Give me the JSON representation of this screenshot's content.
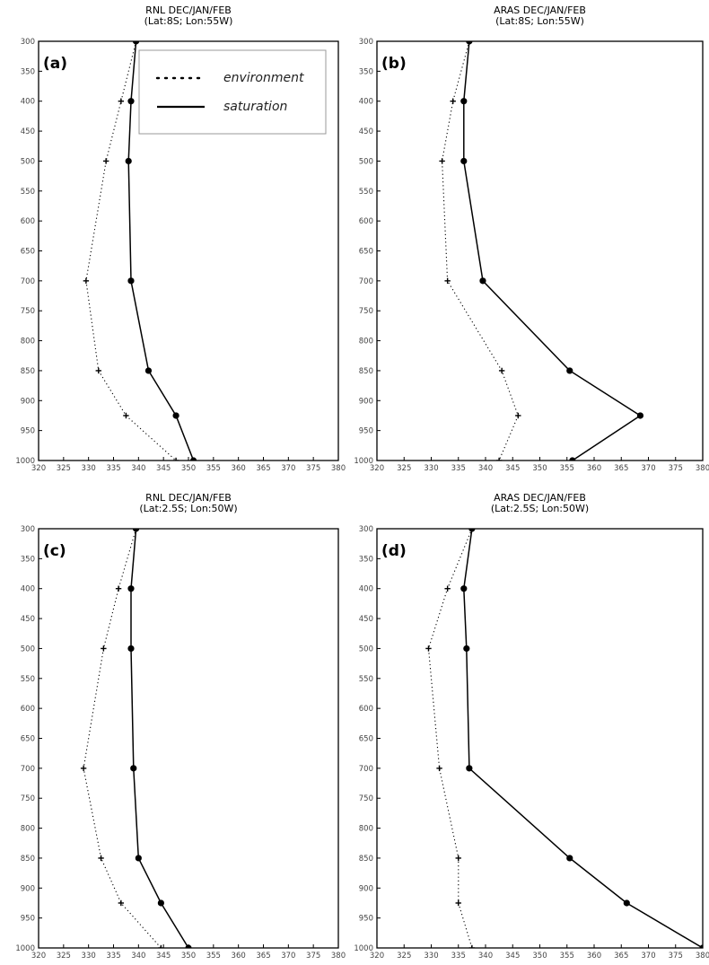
{
  "chart_data": [
    {
      "type": "line",
      "panel_label": "(a)",
      "title": "RNL DEC/JAN/FEB",
      "subtitle": "(Lat:8S; Lon:55W)",
      "xlim": [
        320,
        380
      ],
      "ylim": [
        300,
        1000
      ],
      "y_inverted": true,
      "xticks": [
        320,
        325,
        330,
        335,
        340,
        345,
        350,
        355,
        360,
        365,
        370,
        375,
        380
      ],
      "yticks": [
        300,
        350,
        400,
        450,
        500,
        550,
        600,
        650,
        700,
        750,
        800,
        850,
        900,
        950,
        1000
      ],
      "legend": {
        "location": "top-right",
        "entries": [
          "environment",
          "saturation"
        ]
      },
      "series": [
        {
          "name": "environment",
          "style": "dotted",
          "marker": "plus",
          "points": [
            {
              "p": 300,
              "t": 339.5
            },
            {
              "p": 400,
              "t": 336.5
            },
            {
              "p": 500,
              "t": 333.5
            },
            {
              "p": 700,
              "t": 329.5
            },
            {
              "p": 850,
              "t": 332.0
            },
            {
              "p": 925,
              "t": 337.5
            },
            {
              "p": 1000,
              "t": 347.5
            }
          ]
        },
        {
          "name": "saturation",
          "style": "solid",
          "marker": "dot",
          "points": [
            {
              "p": 300,
              "t": 339.5
            },
            {
              "p": 400,
              "t": 338.5
            },
            {
              "p": 500,
              "t": 338.0
            },
            {
              "p": 700,
              "t": 338.5
            },
            {
              "p": 850,
              "t": 342.0
            },
            {
              "p": 925,
              "t": 347.5
            },
            {
              "p": 1000,
              "t": 351.0
            }
          ]
        }
      ]
    },
    {
      "type": "line",
      "panel_label": "(b)",
      "title": "ARAS DEC/JAN/FEB",
      "subtitle": "(Lat:8S; Lon:55W)",
      "xlim": [
        320,
        380
      ],
      "ylim": [
        300,
        1000
      ],
      "y_inverted": true,
      "xticks": [
        320,
        325,
        330,
        335,
        340,
        345,
        350,
        355,
        360,
        365,
        370,
        375,
        380
      ],
      "yticks": [
        300,
        350,
        400,
        450,
        500,
        550,
        600,
        650,
        700,
        750,
        800,
        850,
        900,
        950,
        1000
      ],
      "series": [
        {
          "name": "environment",
          "style": "dotted",
          "marker": "plus",
          "points": [
            {
              "p": 300,
              "t": 337.0
            },
            {
              "p": 400,
              "t": 334.0
            },
            {
              "p": 500,
              "t": 332.0
            },
            {
              "p": 700,
              "t": 333.0
            },
            {
              "p": 850,
              "t": 343.0
            },
            {
              "p": 925,
              "t": 346.0
            },
            {
              "p": 1000,
              "t": 342.5
            }
          ]
        },
        {
          "name": "saturation",
          "style": "solid",
          "marker": "dot",
          "points": [
            {
              "p": 300,
              "t": 337.0
            },
            {
              "p": 400,
              "t": 336.0
            },
            {
              "p": 500,
              "t": 336.0
            },
            {
              "p": 700,
              "t": 339.5
            },
            {
              "p": 850,
              "t": 355.5
            },
            {
              "p": 925,
              "t": 368.5
            },
            {
              "p": 1000,
              "t": 356.0
            }
          ]
        }
      ]
    },
    {
      "type": "line",
      "panel_label": "(c)",
      "title": "RNL DEC/JAN/FEB",
      "subtitle": "(Lat:2.5S; Lon:50W)",
      "xlim": [
        320,
        380
      ],
      "ylim": [
        300,
        1000
      ],
      "y_inverted": true,
      "xticks": [
        320,
        325,
        330,
        335,
        340,
        345,
        350,
        355,
        360,
        365,
        370,
        375,
        380
      ],
      "yticks": [
        300,
        350,
        400,
        450,
        500,
        550,
        600,
        650,
        700,
        750,
        800,
        850,
        900,
        950,
        1000
      ],
      "series": [
        {
          "name": "environment",
          "style": "dotted",
          "marker": "plus",
          "points": [
            {
              "p": 300,
              "t": 339.5
            },
            {
              "p": 400,
              "t": 336.0
            },
            {
              "p": 500,
              "t": 333.0
            },
            {
              "p": 700,
              "t": 329.0
            },
            {
              "p": 850,
              "t": 332.5
            },
            {
              "p": 925,
              "t": 336.5
            },
            {
              "p": 1000,
              "t": 344.5
            }
          ]
        },
        {
          "name": "saturation",
          "style": "solid",
          "marker": "dot",
          "points": [
            {
              "p": 300,
              "t": 339.5
            },
            {
              "p": 400,
              "t": 338.5
            },
            {
              "p": 500,
              "t": 338.5
            },
            {
              "p": 700,
              "t": 339.0
            },
            {
              "p": 850,
              "t": 340.0
            },
            {
              "p": 925,
              "t": 344.5
            },
            {
              "p": 1000,
              "t": 350.0
            }
          ]
        }
      ]
    },
    {
      "type": "line",
      "panel_label": "(d)",
      "title": "ARAS DEC/JAN/FEB",
      "subtitle": "(Lat:2.5S; Lon:50W)",
      "xlim": [
        320,
        380
      ],
      "ylim": [
        300,
        1000
      ],
      "y_inverted": true,
      "xticks": [
        320,
        325,
        330,
        335,
        340,
        345,
        350,
        355,
        360,
        365,
        370,
        375,
        380
      ],
      "yticks": [
        300,
        350,
        400,
        450,
        500,
        550,
        600,
        650,
        700,
        750,
        800,
        850,
        900,
        950,
        1000
      ],
      "series": [
        {
          "name": "environment",
          "style": "dotted",
          "marker": "plus",
          "points": [
            {
              "p": 300,
              "t": 337.5
            },
            {
              "p": 400,
              "t": 333.0
            },
            {
              "p": 500,
              "t": 329.5
            },
            {
              "p": 700,
              "t": 331.5
            },
            {
              "p": 850,
              "t": 335.0
            },
            {
              "p": 925,
              "t": 335.0
            },
            {
              "p": 1000,
              "t": 337.5
            }
          ]
        },
        {
          "name": "saturation",
          "style": "solid",
          "marker": "dot",
          "points": [
            {
              "p": 300,
              "t": 337.5
            },
            {
              "p": 400,
              "t": 336.0
            },
            {
              "p": 500,
              "t": 336.5
            },
            {
              "p": 700,
              "t": 337.0
            },
            {
              "p": 850,
              "t": 355.5
            },
            {
              "p": 925,
              "t": 366.0
            },
            {
              "p": 1000,
              "t": 380.0
            }
          ]
        }
      ]
    }
  ]
}
